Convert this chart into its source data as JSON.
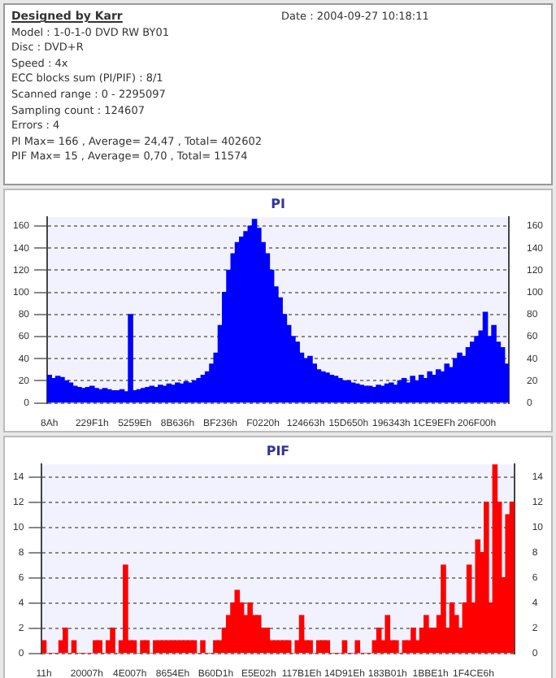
{
  "chart_data": [
    {
      "type": "other",
      "title": "Designed by Karr",
      "annotations": [
        "Date : 2004-09-27 10:18:11",
        "Model : 1-0-1-0 DVD RW BY01",
        "Disc : DVD+R",
        "Speed : 4x",
        "ECC blocks sum (PI/PIF) : 8/1",
        "Scanned range : 0 - 2295097",
        "Sampling count : 124607",
        "Errors : 4",
        "PI Max= 166 , Average= 24,47 , Total= 402602",
        "PIF Max= 15 , Average= 0,70 , Total= 11574"
      ]
    },
    {
      "type": "bar",
      "title": "PI",
      "grid": "y",
      "ylim": [
        0,
        168
      ],
      "yticks": [
        0,
        20,
        40,
        60,
        80,
        100,
        120,
        140,
        160
      ],
      "y2lim": [
        0,
        168
      ],
      "y2ticks": [
        0,
        20,
        40,
        60,
        80,
        100,
        120,
        140,
        160
      ],
      "categories": [
        "8Ah",
        null,
        null,
        null,
        null,
        null,
        null,
        null,
        null,
        null,
        "229F1h",
        null,
        null,
        null,
        null,
        null,
        null,
        null,
        null,
        null,
        "5259Eh",
        null,
        null,
        null,
        null,
        null,
        null,
        null,
        null,
        null,
        "8B636h",
        null,
        null,
        null,
        null,
        null,
        null,
        null,
        null,
        null,
        "BF236h",
        null,
        null,
        null,
        null,
        null,
        null,
        null,
        null,
        null,
        "F0220h",
        null,
        null,
        null,
        null,
        null,
        null,
        null,
        null,
        null,
        "124663h",
        null,
        null,
        null,
        null,
        null,
        null,
        null,
        null,
        null,
        "15D650h",
        null,
        null,
        null,
        null,
        null,
        null,
        null,
        null,
        null,
        "196343h",
        null,
        null,
        null,
        null,
        null,
        null,
        null,
        null,
        null,
        "1CE9EFh",
        null,
        null,
        null,
        null,
        null,
        null,
        null,
        null,
        null,
        "206F00h",
        null,
        null,
        null,
        null,
        null,
        null,
        null
      ],
      "series": [
        {
          "color": "#0000ff",
          "values": [
            25,
            22,
            24,
            23,
            20,
            18,
            15,
            14,
            13,
            14,
            15,
            13,
            12,
            13,
            12,
            11,
            11,
            12,
            10,
            80,
            11,
            12,
            13,
            14,
            15,
            14,
            16,
            15,
            17,
            16,
            18,
            17,
            19,
            18,
            20,
            22,
            25,
            28,
            35,
            45,
            70,
            100,
            120,
            135,
            145,
            150,
            155,
            160,
            166,
            158,
            145,
            135,
            120,
            105,
            95,
            80,
            70,
            60,
            55,
            45,
            40,
            42,
            35,
            30,
            28,
            27,
            25,
            24,
            22,
            20,
            20,
            18,
            17,
            16,
            15,
            15,
            14,
            16,
            15,
            17,
            18,
            16,
            20,
            22,
            18,
            24,
            20,
            25,
            22,
            28,
            25,
            30,
            28,
            35,
            32,
            40,
            45,
            42,
            50,
            55,
            60,
            65,
            82,
            60,
            70,
            55,
            50,
            35
          ]
        }
      ]
    },
    {
      "type": "bar",
      "title": "PIF",
      "grid": "y",
      "ylim": [
        0,
        15
      ],
      "yticks": [
        0,
        2,
        4,
        6,
        8,
        10,
        12,
        14
      ],
      "y2lim": [
        0,
        15
      ],
      "y2ticks": [
        0,
        2,
        4,
        6,
        8,
        10,
        12,
        14
      ],
      "categories": [
        "11h",
        null,
        null,
        null,
        null,
        null,
        null,
        null,
        null,
        null,
        "20007h",
        null,
        null,
        null,
        null,
        null,
        null,
        null,
        null,
        null,
        "4E007h",
        null,
        null,
        null,
        null,
        null,
        null,
        null,
        null,
        null,
        "8654Eh",
        null,
        null,
        null,
        null,
        null,
        null,
        null,
        null,
        null,
        "B60D1h",
        null,
        null,
        null,
        null,
        null,
        null,
        null,
        null,
        null,
        "E5E02h",
        null,
        null,
        null,
        null,
        null,
        null,
        null,
        null,
        null,
        "117B1Eh",
        null,
        null,
        null,
        null,
        null,
        null,
        null,
        null,
        null,
        "14D91Eh",
        null,
        null,
        null,
        null,
        null,
        null,
        null,
        null,
        null,
        "183B01h",
        null,
        null,
        null,
        null,
        null,
        null,
        null,
        null,
        null,
        "1BBE1h",
        null,
        null,
        null,
        null,
        null,
        null,
        null,
        null,
        null,
        "1F4CE6h",
        null,
        null,
        null,
        null,
        null,
        null,
        null,
        null,
        null
      ],
      "series": [
        {
          "color": "#ff0000",
          "values": [
            1,
            0,
            0,
            0,
            1,
            2,
            0,
            1,
            0,
            0,
            0,
            0,
            1,
            1,
            0,
            1,
            2,
            0,
            1,
            7,
            1,
            1,
            0,
            1,
            1,
            0,
            1,
            1,
            1,
            1,
            1,
            1,
            1,
            1,
            1,
            1,
            0,
            1,
            0,
            0,
            1,
            1,
            2,
            3,
            4,
            5,
            4,
            3,
            4,
            3,
            3,
            2,
            2,
            1,
            1,
            1,
            1,
            1,
            0,
            1,
            3,
            1,
            1,
            0,
            1,
            1,
            1,
            0,
            0,
            0,
            1,
            0,
            0,
            1,
            0,
            0,
            0,
            1,
            2,
            1,
            3,
            1,
            1,
            0,
            1,
            1,
            2,
            1,
            2,
            3,
            2,
            2,
            3,
            7,
            2,
            4,
            3,
            2,
            4,
            7,
            4,
            9,
            8,
            12,
            4,
            15,
            12,
            6,
            11,
            12
          ]
        }
      ]
    }
  ]
}
